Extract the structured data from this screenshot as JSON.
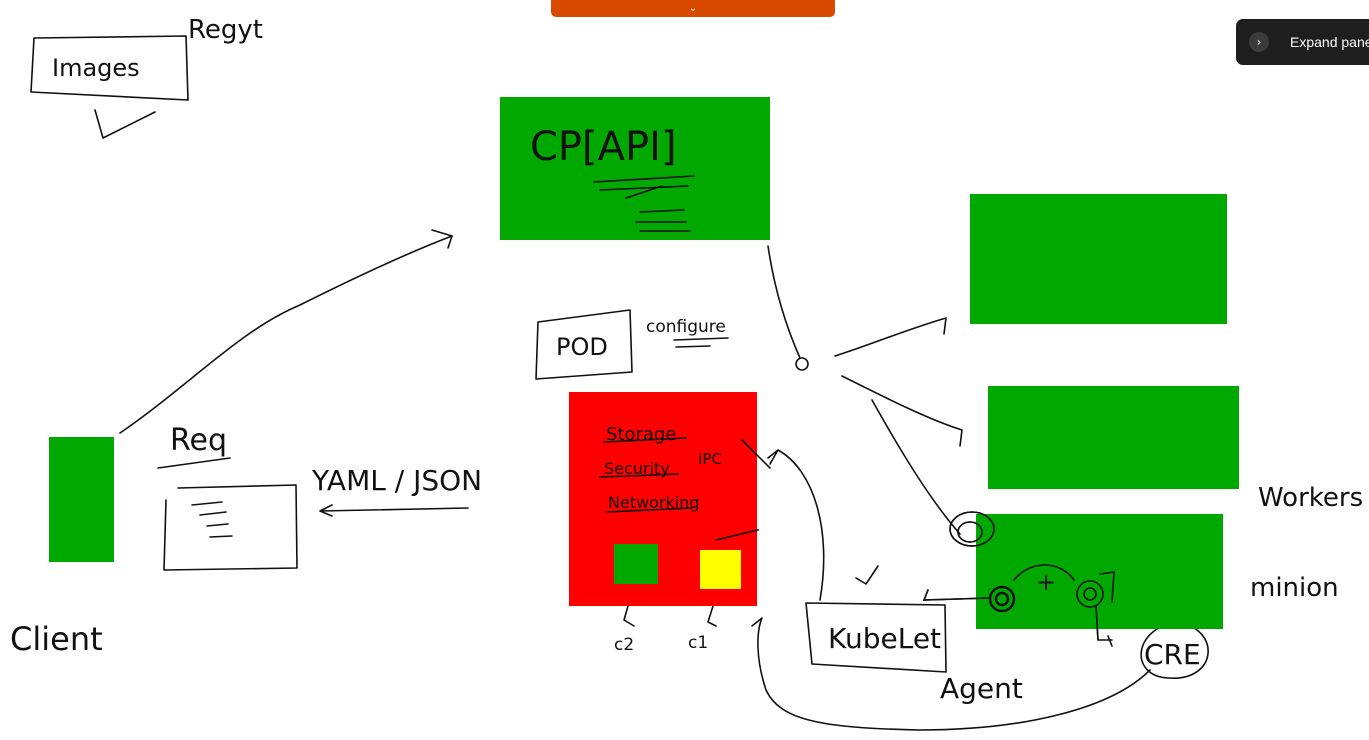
{
  "toolbar": {
    "collapse_icon": "chevron-down-icon",
    "accent": "#d84a00"
  },
  "expand_panel": {
    "label": "Expand pane",
    "icon": "chevron-right-icon"
  },
  "colors": {
    "node": "#00a800",
    "pod": "#ff0000",
    "container_c1": "#ffff00",
    "container_c2": "#00a800",
    "ink": "#111111"
  },
  "labels": {
    "images": "Images",
    "registry": "Regyt",
    "control_plane": "CP[API]",
    "pod": "POD",
    "configure": "configure",
    "storage": "Storage",
    "security": "Security",
    "ipc": "IPC",
    "networking": "Networking",
    "c2": "c2",
    "c1": "c1",
    "kubelet": "KubeLet",
    "agent": "Agent",
    "cri": "CRE",
    "workers": "Workers",
    "minion": "minion",
    "req": "Req",
    "yaml_json": "YAML / JSON",
    "client": "Client",
    "plus": "+"
  }
}
